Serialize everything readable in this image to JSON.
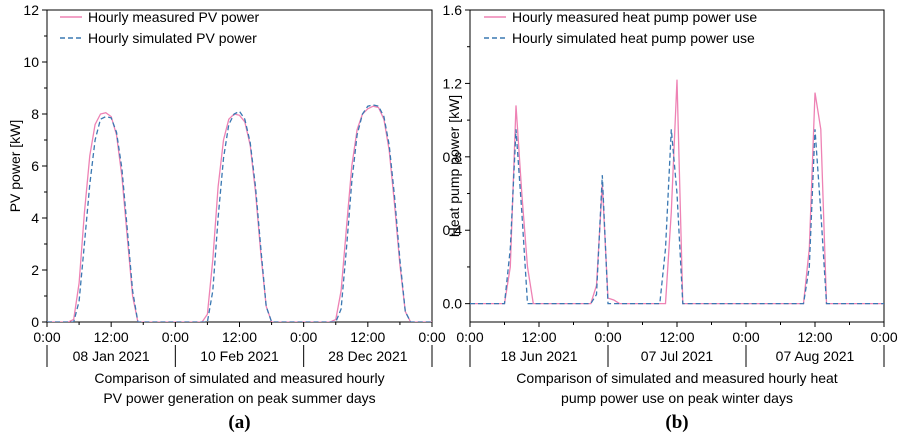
{
  "chart_data": [
    {
      "type": "line",
      "panel_label": "(a)",
      "ylabel": "PV power [kW]",
      "xlabel_lines": [
        "Comparison of simulated and measured hourly",
        "PV power generation on peak summer days"
      ],
      "ylim": [
        0,
        12
      ],
      "yticks": [
        0,
        2,
        4,
        6,
        8,
        10,
        12
      ],
      "xlim": [
        0,
        72
      ],
      "xticks": [
        0,
        12,
        24,
        36,
        48,
        60,
        72
      ],
      "xtick_labels": [
        "0:00",
        "12:00",
        "0:00",
        "12:00",
        "0:00",
        "12:00",
        "0:00"
      ],
      "days": [
        "08 Jan 2021",
        "10 Feb 2021",
        "28 Dec 2021"
      ],
      "legend_position": "top-left",
      "series": [
        {
          "name": "Hourly measured PV power",
          "color": "#ee82b4",
          "style": "solid",
          "x": [
            0,
            1,
            2,
            3,
            4,
            5,
            6,
            7,
            8,
            9,
            10,
            11,
            12,
            13,
            14,
            15,
            16,
            17,
            18,
            19,
            20,
            21,
            22,
            23,
            24,
            25,
            26,
            27,
            28,
            29,
            30,
            31,
            32,
            33,
            34,
            35,
            36,
            37,
            38,
            39,
            40,
            41,
            42,
            43,
            44,
            45,
            46,
            47,
            48,
            49,
            50,
            51,
            52,
            53,
            54,
            55,
            56,
            57,
            58,
            59,
            60,
            61,
            62,
            63,
            64,
            65,
            66,
            67,
            68,
            69,
            70,
            71,
            72
          ],
          "values": [
            0,
            0,
            0,
            0,
            0,
            0.1,
            1.5,
            4.2,
            6.4,
            7.6,
            8.0,
            8.05,
            7.9,
            7.2,
            5.6,
            3.3,
            1.0,
            0,
            0,
            0,
            0,
            0,
            0,
            0,
            0,
            0,
            0,
            0,
            0,
            0,
            0.3,
            2.4,
            5.2,
            7.0,
            7.8,
            8.0,
            7.95,
            7.7,
            6.8,
            5.0,
            2.6,
            0.6,
            0,
            0,
            0,
            0,
            0,
            0,
            0,
            0,
            0,
            0,
            0,
            0,
            0.1,
            1.2,
            3.6,
            6.0,
            7.4,
            8.0,
            8.2,
            8.3,
            8.25,
            7.8,
            6.6,
            4.5,
            2.2,
            0.4,
            0,
            0,
            0,
            0,
            0
          ]
        },
        {
          "name": "Hourly simulated PV power",
          "color": "#3a78b2",
          "style": "dashed",
          "x": [
            0,
            1,
            2,
            3,
            4,
            5,
            6,
            7,
            8,
            9,
            10,
            11,
            12,
            13,
            14,
            15,
            16,
            17,
            18,
            19,
            20,
            21,
            22,
            23,
            24,
            25,
            26,
            27,
            28,
            29,
            30,
            31,
            32,
            33,
            34,
            35,
            36,
            37,
            38,
            39,
            40,
            41,
            42,
            43,
            44,
            45,
            46,
            47,
            48,
            49,
            50,
            51,
            52,
            53,
            54,
            55,
            56,
            57,
            58,
            59,
            60,
            61,
            62,
            63,
            64,
            65,
            66,
            67,
            68,
            69,
            70,
            71,
            72
          ],
          "values": [
            0,
            0,
            0,
            0,
            0,
            0,
            0.8,
            3.0,
            5.3,
            7.0,
            7.8,
            7.9,
            7.85,
            7.3,
            5.9,
            3.6,
            1.2,
            0,
            0,
            0,
            0,
            0,
            0,
            0,
            0,
            0,
            0,
            0,
            0,
            0,
            0,
            1.2,
            4.0,
            6.3,
            7.6,
            8.0,
            8.1,
            7.8,
            6.9,
            5.2,
            2.8,
            0.6,
            0,
            0,
            0,
            0,
            0,
            0,
            0,
            0,
            0,
            0,
            0,
            0,
            0,
            0.5,
            2.8,
            5.4,
            7.2,
            8.0,
            8.3,
            8.35,
            8.3,
            7.9,
            6.8,
            4.8,
            2.4,
            0.4,
            0,
            0,
            0,
            0,
            0
          ]
        }
      ]
    },
    {
      "type": "line",
      "panel_label": "(b)",
      "ylabel": "Heat pump power [kW]",
      "xlabel_lines": [
        "Comparison of simulated and measured hourly heat",
        "pump power use on peak winter days"
      ],
      "ylim": [
        -0.1,
        1.6
      ],
      "yticks": [
        0.0,
        0.4,
        0.8,
        1.2,
        1.6
      ],
      "xlim": [
        0,
        72
      ],
      "xticks": [
        0,
        12,
        24,
        36,
        48,
        60,
        72
      ],
      "xtick_labels": [
        "0:00",
        "12:00",
        "0:00",
        "12:00",
        "0:00",
        "12:00",
        "0:00"
      ],
      "days": [
        "18 Jun 2021",
        "07 Jul 2021",
        "07 Aug 2021"
      ],
      "legend_position": "top-left",
      "series": [
        {
          "name": "Hourly measured heat pump power use",
          "color": "#ee82b4",
          "style": "solid",
          "x": [
            0,
            1,
            2,
            3,
            4,
            5,
            6,
            7,
            8,
            9,
            10,
            11,
            12,
            13,
            14,
            15,
            16,
            17,
            18,
            19,
            20,
            21,
            22,
            23,
            24,
            25,
            26,
            27,
            28,
            29,
            30,
            31,
            32,
            33,
            34,
            35,
            36,
            37,
            38,
            39,
            40,
            41,
            42,
            43,
            44,
            45,
            46,
            47,
            48,
            49,
            50,
            51,
            52,
            53,
            54,
            55,
            56,
            57,
            58,
            59,
            60,
            61,
            62,
            63,
            64,
            65,
            66,
            67,
            68,
            69,
            70,
            71,
            72
          ],
          "values": [
            0,
            0,
            0,
            0,
            0,
            0,
            0,
            0.2,
            1.08,
            0.6,
            0.2,
            0,
            0,
            0,
            0,
            0,
            0,
            0,
            0,
            0,
            0,
            0,
            0.1,
            0.65,
            0.03,
            0.02,
            0,
            0,
            0,
            0,
            0,
            0,
            0,
            0,
            0,
            0.5,
            1.22,
            0,
            0,
            0,
            0,
            0,
            0,
            0,
            0,
            0,
            0,
            0,
            0,
            0,
            0,
            0,
            0,
            0,
            0,
            0,
            0,
            0,
            0,
            0.3,
            1.15,
            0.95,
            0,
            0,
            0,
            0,
            0,
            0,
            0,
            0,
            0,
            0,
            0
          ]
        },
        {
          "name": "Hourly simulated heat pump power use",
          "color": "#3a78b2",
          "style": "dashed",
          "x": [
            0,
            1,
            2,
            3,
            4,
            5,
            6,
            7,
            8,
            9,
            10,
            11,
            12,
            13,
            14,
            15,
            16,
            17,
            18,
            19,
            20,
            21,
            22,
            23,
            24,
            25,
            26,
            27,
            28,
            29,
            30,
            31,
            32,
            33,
            34,
            35,
            36,
            37,
            38,
            39,
            40,
            41,
            42,
            43,
            44,
            45,
            46,
            47,
            48,
            49,
            50,
            51,
            52,
            53,
            54,
            55,
            56,
            57,
            58,
            59,
            60,
            61,
            62,
            63,
            64,
            65,
            66,
            67,
            68,
            69,
            70,
            71,
            72
          ],
          "values": [
            0,
            0,
            0,
            0,
            0,
            0,
            0,
            0.3,
            0.95,
            0.5,
            0,
            0,
            0,
            0,
            0,
            0,
            0,
            0,
            0,
            0,
            0,
            0,
            0.05,
            0.7,
            0,
            0,
            0,
            0,
            0,
            0,
            0,
            0,
            0,
            0,
            0.3,
            0.95,
            0.6,
            0,
            0,
            0,
            0,
            0,
            0,
            0,
            0,
            0,
            0,
            0,
            0,
            0,
            0,
            0,
            0,
            0,
            0,
            0,
            0,
            0,
            0,
            0.2,
            0.95,
            0.5,
            0,
            0,
            0,
            0,
            0,
            0,
            0,
            0,
            0,
            0,
            0
          ]
        }
      ]
    }
  ]
}
